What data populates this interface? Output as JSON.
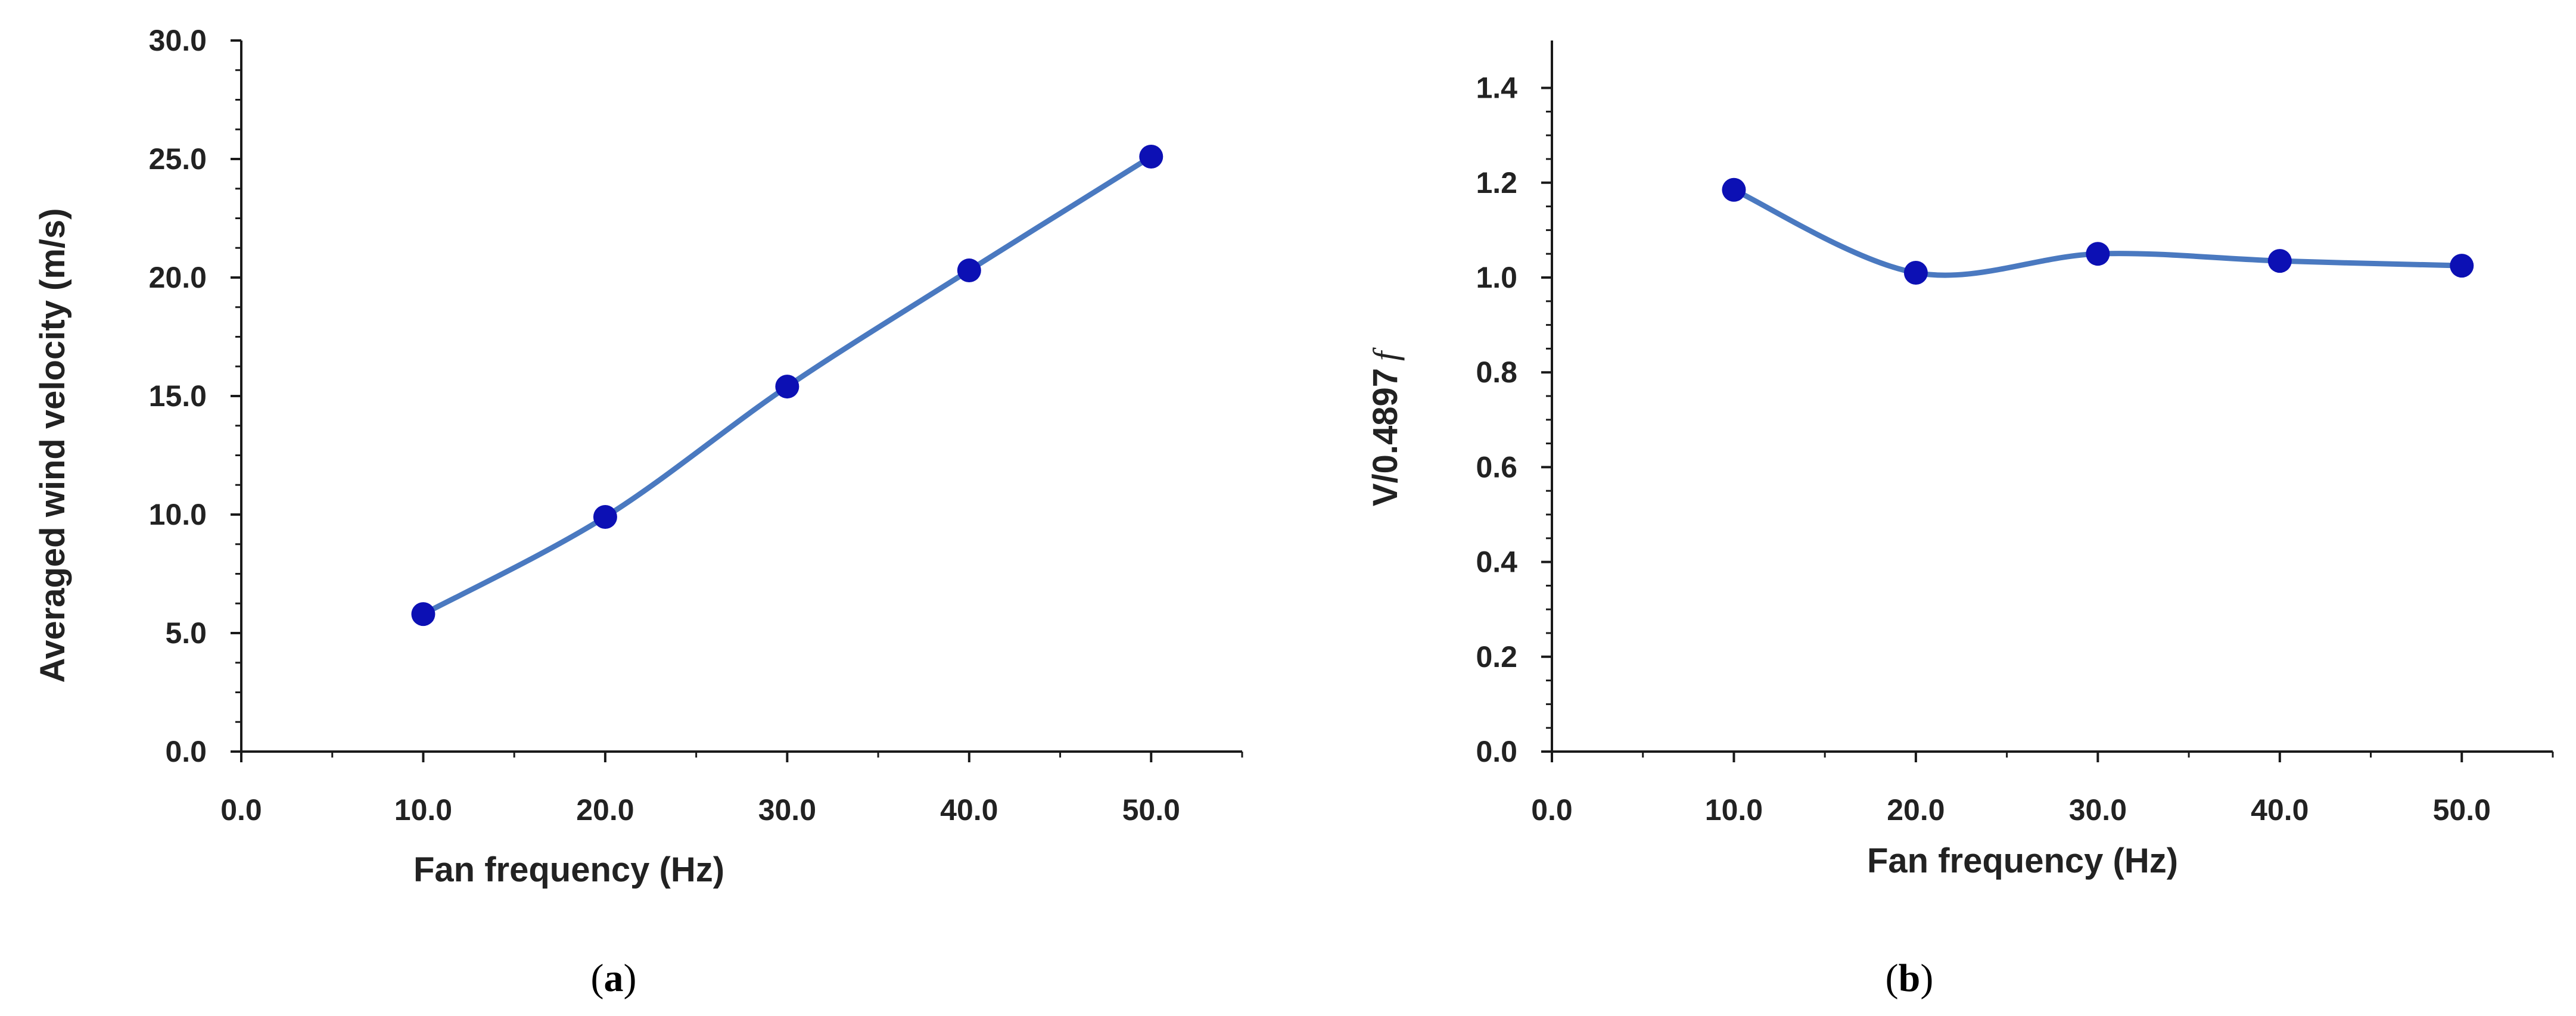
{
  "colors": {
    "line": "#4a79c0",
    "marker": "#0c10b4",
    "axis": "#1a1a1a",
    "text": "#222222"
  },
  "chart_data": [
    {
      "type": "line",
      "smooth": true,
      "caption_letter": "a",
      "xlabel": "Fan frequency (Hz)",
      "ylabel": "Averaged wind velocity (m/s)",
      "xlim": [
        0,
        55
      ],
      "ylim": [
        0,
        30
      ],
      "x_ticks": [
        0,
        10,
        20,
        30,
        40,
        50
      ],
      "x_tick_labels": [
        "0.0",
        "10.0",
        "20.0",
        "30.0",
        "40.0",
        "50.0"
      ],
      "y_ticks": [
        0,
        5,
        10,
        15,
        20,
        25,
        30
      ],
      "y_tick_labels": [
        "0.0",
        "5.0",
        "10.0",
        "15.0",
        "20.0",
        "25.0",
        "30.0"
      ],
      "series": [
        {
          "name": "Averaged wind velocity",
          "x": [
            10,
            20,
            30,
            40,
            50
          ],
          "values": [
            5.8,
            9.9,
            15.4,
            20.3,
            25.1
          ]
        }
      ]
    },
    {
      "type": "line",
      "smooth": true,
      "caption_letter": "b",
      "xlabel": "Fan frequency (Hz)",
      "ylabel_main": "V/0.4897",
      "ylabel_var": "f",
      "xlim": [
        0,
        55
      ],
      "ylim": [
        0,
        1.5
      ],
      "x_ticks": [
        0,
        10,
        20,
        30,
        40,
        50
      ],
      "x_tick_labels": [
        "0.0",
        "10.0",
        "20.0",
        "30.0",
        "40.0",
        "50.0"
      ],
      "y_ticks": [
        0,
        0.2,
        0.4,
        0.6,
        0.8,
        1.0,
        1.2,
        1.4
      ],
      "y_tick_labels": [
        "0.0",
        "0.2",
        "0.4",
        "0.6",
        "0.8",
        "1.0",
        "1.2",
        "1.4"
      ],
      "series": [
        {
          "name": "V/0.4897f",
          "x": [
            10,
            20,
            30,
            40,
            50
          ],
          "values": [
            1.185,
            1.01,
            1.05,
            1.035,
            1.025
          ]
        }
      ]
    }
  ]
}
